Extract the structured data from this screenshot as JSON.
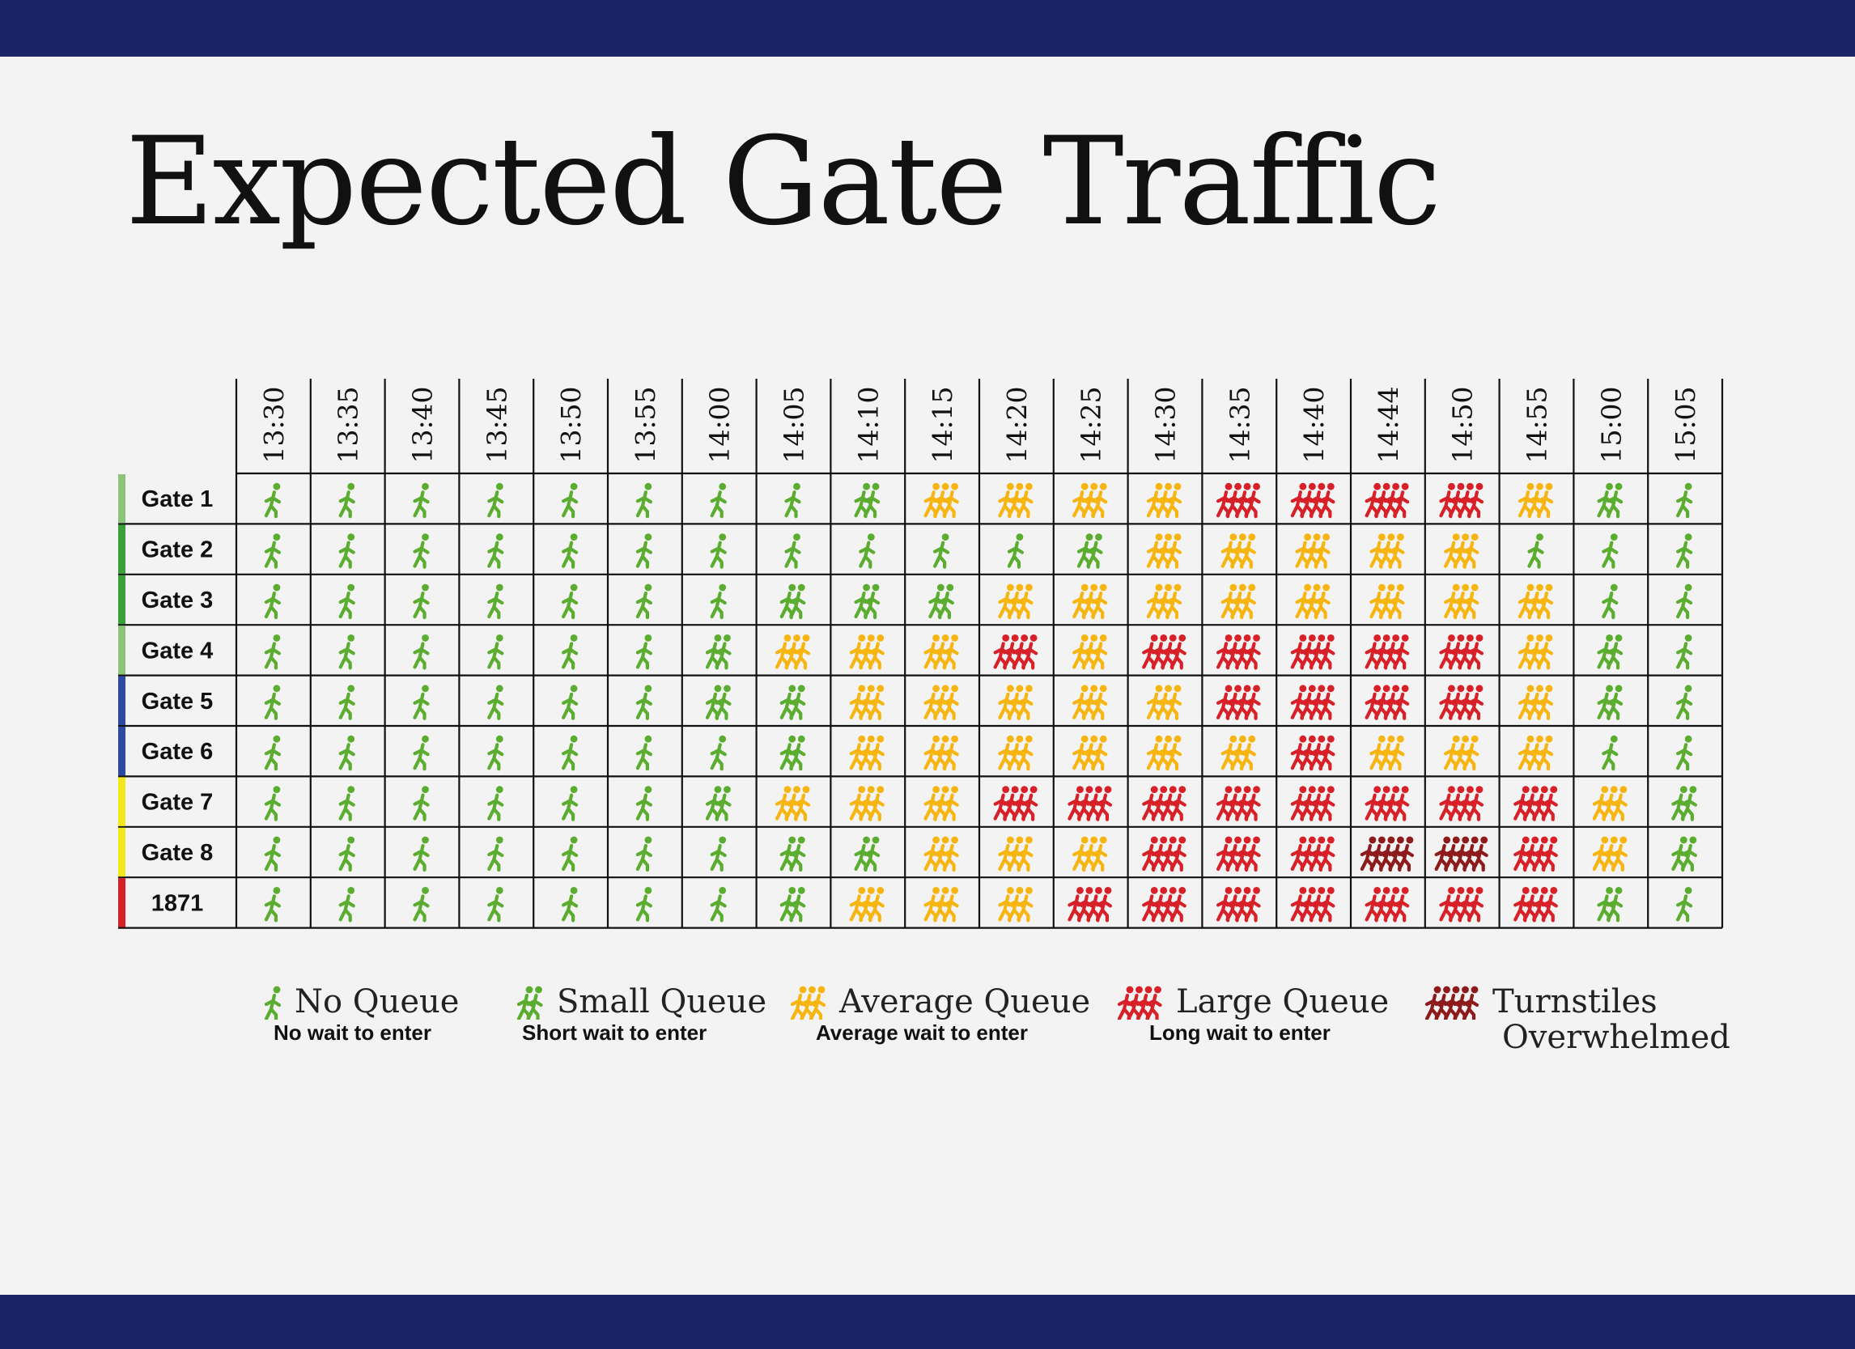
{
  "title": "Expected Gate Traffic",
  "colors": {
    "band": "#1a2466",
    "no_queue": "#5aad2f",
    "small_queue": "#5aad2f",
    "average_queue": "#f7b512",
    "large_queue": "#d72027",
    "overwhelmed": "#8e1b1b",
    "gate_bars": [
      "#8cc47a",
      "#3aa03a",
      "#3aa03a",
      "#8cc47a",
      "#2b4aa3",
      "#2b4aa3",
      "#f4e81d",
      "#f4e81d",
      "#d72027"
    ]
  },
  "chart_data": {
    "type": "table",
    "title": "Expected Gate Traffic",
    "columns": [
      "13:30",
      "13:35",
      "13:40",
      "13:45",
      "13:50",
      "13:55",
      "14:00",
      "14:05",
      "14:10",
      "14:15",
      "14:20",
      "14:25",
      "14:30",
      "14:35",
      "14:40",
      "14:44",
      "14:50",
      "14:55",
      "15:00",
      "15:05"
    ],
    "rows": [
      {
        "label": "Gate 1",
        "levels": [
          0,
          0,
          0,
          0,
          0,
          0,
          0,
          0,
          1,
          2,
          2,
          2,
          2,
          3,
          3,
          3,
          3,
          2,
          1,
          0
        ]
      },
      {
        "label": "Gate 2",
        "levels": [
          0,
          0,
          0,
          0,
          0,
          0,
          0,
          0,
          0,
          0,
          0,
          1,
          2,
          2,
          2,
          2,
          2,
          0,
          0,
          0
        ]
      },
      {
        "label": "Gate 3",
        "levels": [
          0,
          0,
          0,
          0,
          0,
          0,
          0,
          1,
          1,
          1,
          2,
          2,
          2,
          2,
          2,
          2,
          2,
          2,
          0,
          0
        ]
      },
      {
        "label": "Gate 4",
        "levels": [
          0,
          0,
          0,
          0,
          0,
          0,
          1,
          2,
          2,
          2,
          3,
          2,
          3,
          3,
          3,
          3,
          3,
          2,
          1,
          0
        ]
      },
      {
        "label": "Gate 5",
        "levels": [
          0,
          0,
          0,
          0,
          0,
          0,
          1,
          1,
          2,
          2,
          2,
          2,
          2,
          3,
          3,
          3,
          3,
          2,
          1,
          0
        ]
      },
      {
        "label": "Gate 6",
        "levels": [
          0,
          0,
          0,
          0,
          0,
          0,
          0,
          1,
          2,
          2,
          2,
          2,
          2,
          2,
          3,
          2,
          2,
          2,
          0,
          0
        ]
      },
      {
        "label": "Gate 7",
        "levels": [
          0,
          0,
          0,
          0,
          0,
          0,
          1,
          2,
          2,
          2,
          3,
          3,
          3,
          3,
          3,
          3,
          3,
          3,
          2,
          1
        ]
      },
      {
        "label": "Gate 8",
        "levels": [
          0,
          0,
          0,
          0,
          0,
          0,
          0,
          1,
          1,
          2,
          2,
          2,
          3,
          3,
          3,
          4,
          4,
          3,
          2,
          1
        ]
      },
      {
        "label": "1871",
        "levels": [
          0,
          0,
          0,
          0,
          0,
          0,
          0,
          1,
          2,
          2,
          2,
          3,
          3,
          3,
          3,
          3,
          3,
          3,
          1,
          0
        ]
      }
    ],
    "level_key": [
      "No Queue",
      "Small Queue",
      "Average Queue",
      "Large Queue",
      "Turnstiles Overwhelmed"
    ]
  },
  "legend": [
    {
      "title": "No Queue",
      "subtitle": "No wait to enter",
      "level": 0
    },
    {
      "title": "Small Queue",
      "subtitle": "Short wait to enter",
      "level": 1
    },
    {
      "title": "Average Queue",
      "subtitle": "Average wait to enter",
      "level": 2
    },
    {
      "title": "Large Queue",
      "subtitle": "Long wait to enter",
      "level": 3
    },
    {
      "title": "Turnstiles",
      "title2": "Overwhelmed",
      "subtitle": "",
      "level": 4
    }
  ]
}
